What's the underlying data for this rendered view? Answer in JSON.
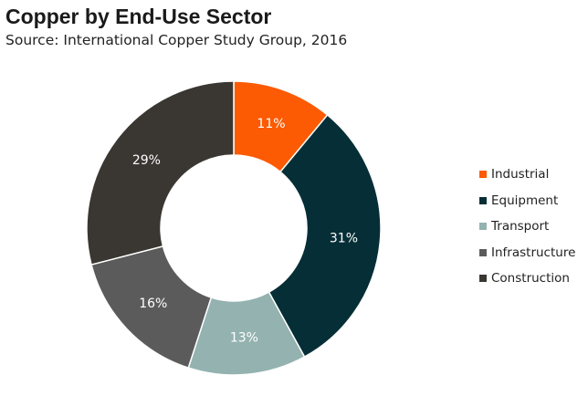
{
  "header": {
    "title": "Copper by End-Use Sector",
    "subtitle": "Source: International Copper Study Group, 2016"
  },
  "chart_data": {
    "type": "pie",
    "variant": "donut",
    "title": "Copper by End-Use Sector",
    "subtitle": "Source: International Copper Study Group, 2016",
    "legend_position": "right",
    "categories": [
      "Industrial",
      "Equipment",
      "Transport",
      "Infrastructure",
      "Construction"
    ],
    "values": [
      11,
      31,
      13,
      16,
      29
    ],
    "data_labels": [
      "11%",
      "31%",
      "13%",
      "16%",
      "29%"
    ],
    "colors": [
      "#fc5a03",
      "#062e36",
      "#93b2b0",
      "#5b5b5b",
      "#3a3631"
    ],
    "label_color": "#ffffff"
  }
}
